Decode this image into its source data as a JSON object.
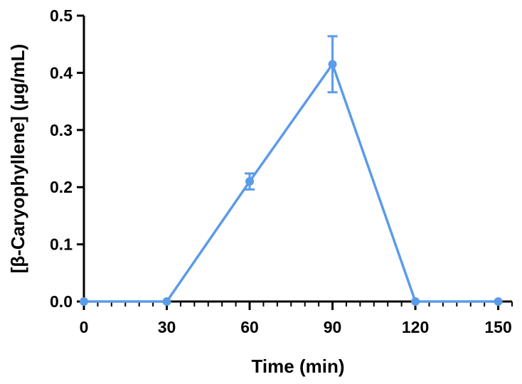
{
  "chart_data": {
    "type": "line",
    "xlabel": "Time (min)",
    "ylabel": "[β-Caryophyllene] (µg/mL)",
    "xlim": [
      0,
      155
    ],
    "ylim": [
      0,
      0.5
    ],
    "x_ticks": [
      0,
      30,
      60,
      90,
      120,
      150
    ],
    "x_tick_labels": [
      "0",
      "30",
      "60",
      "90",
      "120",
      "150"
    ],
    "y_ticks": [
      0,
      0.1,
      0.2,
      0.3,
      0.4,
      0.5
    ],
    "y_tick_labels": [
      "0.0",
      "0.1",
      "0.2",
      "0.3",
      "0.4",
      "0.5"
    ],
    "grid": false,
    "series": [
      {
        "color": "#5b9be8",
        "x": [
          0,
          30,
          60,
          90,
          120,
          150
        ],
        "y": [
          0,
          0,
          0.21,
          0.415,
          0,
          0
        ],
        "error": [
          0,
          0,
          0.014,
          0.049,
          0,
          0
        ]
      }
    ]
  }
}
